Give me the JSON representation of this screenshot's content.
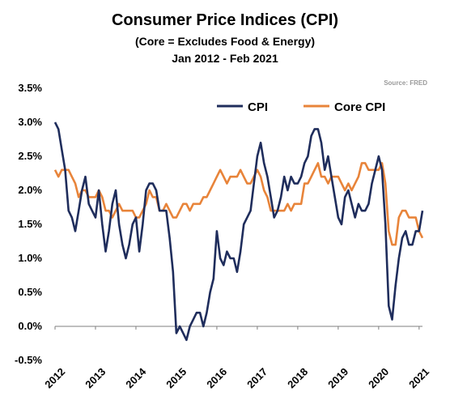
{
  "chart_data": {
    "type": "line",
    "title": "Consumer Price Indices (CPI)",
    "subtitle": "(Core = Excludes Food & Energy)",
    "date_range": "Jan 2012 - Feb 2021",
    "source": "Source: FRED",
    "xlabel": "",
    "ylabel": "",
    "x_tick_labels": [
      "2012",
      "2013",
      "2014",
      "2015",
      "2016",
      "2017",
      "2018",
      "2019",
      "2020",
      "2021"
    ],
    "y_tick_labels": [
      "3.5%",
      "3.0%",
      "2.5%",
      "2.0%",
      "1.5%",
      "1.0%",
      "0.5%",
      "0.0%",
      "-0.5%"
    ],
    "ylim": [
      -0.5,
      3.5
    ],
    "grid": false,
    "legend_position": "top-right",
    "x_start": "2012-01",
    "x_end": "2021-02",
    "series": [
      {
        "name": "CPI",
        "color": "#1f2d5c",
        "values": [
          3.0,
          2.9,
          2.6,
          2.3,
          1.7,
          1.6,
          1.4,
          1.7,
          2.0,
          2.2,
          1.8,
          1.7,
          1.6,
          2.0,
          1.5,
          1.1,
          1.4,
          1.8,
          2.0,
          1.5,
          1.2,
          1.0,
          1.2,
          1.5,
          1.6,
          1.1,
          1.5,
          2.0,
          2.1,
          2.1,
          2.0,
          1.7,
          1.7,
          1.7,
          1.3,
          0.8,
          -0.1,
          0.0,
          -0.1,
          -0.2,
          0.0,
          0.1,
          0.2,
          0.2,
          0.0,
          0.2,
          0.5,
          0.7,
          1.4,
          1.0,
          0.9,
          1.1,
          1.0,
          1.0,
          0.8,
          1.1,
          1.5,
          1.6,
          1.7,
          2.1,
          2.5,
          2.7,
          2.4,
          2.2,
          1.9,
          1.6,
          1.7,
          1.9,
          2.2,
          2.0,
          2.2,
          2.1,
          2.1,
          2.2,
          2.4,
          2.5,
          2.8,
          2.9,
          2.9,
          2.7,
          2.3,
          2.5,
          2.2,
          1.9,
          1.6,
          1.5,
          1.9,
          2.0,
          1.8,
          1.6,
          1.8,
          1.7,
          1.7,
          1.8,
          2.1,
          2.3,
          2.5,
          2.3,
          1.5,
          0.3,
          0.1,
          0.6,
          1.0,
          1.3,
          1.4,
          1.2,
          1.2,
          1.4,
          1.4,
          1.7
        ]
      },
      {
        "name": "Core CPI",
        "color": "#e8843a",
        "values": [
          2.3,
          2.2,
          2.3,
          2.3,
          2.3,
          2.2,
          2.1,
          1.9,
          2.0,
          2.0,
          1.9,
          1.9,
          1.9,
          2.0,
          1.9,
          1.7,
          1.7,
          1.6,
          1.7,
          1.8,
          1.7,
          1.7,
          1.7,
          1.7,
          1.6,
          1.6,
          1.7,
          1.8,
          2.0,
          1.9,
          1.9,
          1.7,
          1.7,
          1.8,
          1.7,
          1.6,
          1.6,
          1.7,
          1.8,
          1.8,
          1.7,
          1.8,
          1.8,
          1.8,
          1.9,
          1.9,
          2.0,
          2.1,
          2.2,
          2.3,
          2.2,
          2.1,
          2.2,
          2.2,
          2.2,
          2.3,
          2.2,
          2.1,
          2.1,
          2.2,
          2.3,
          2.2,
          2.0,
          1.9,
          1.7,
          1.7,
          1.7,
          1.7,
          1.7,
          1.8,
          1.7,
          1.8,
          1.8,
          1.8,
          2.1,
          2.1,
          2.2,
          2.3,
          2.4,
          2.2,
          2.2,
          2.1,
          2.2,
          2.2,
          2.2,
          2.1,
          2.0,
          2.1,
          2.0,
          2.1,
          2.2,
          2.4,
          2.4,
          2.3,
          2.3,
          2.3,
          2.3,
          2.4,
          2.1,
          1.4,
          1.2,
          1.2,
          1.6,
          1.7,
          1.7,
          1.6,
          1.6,
          1.6,
          1.4,
          1.3
        ]
      }
    ]
  }
}
